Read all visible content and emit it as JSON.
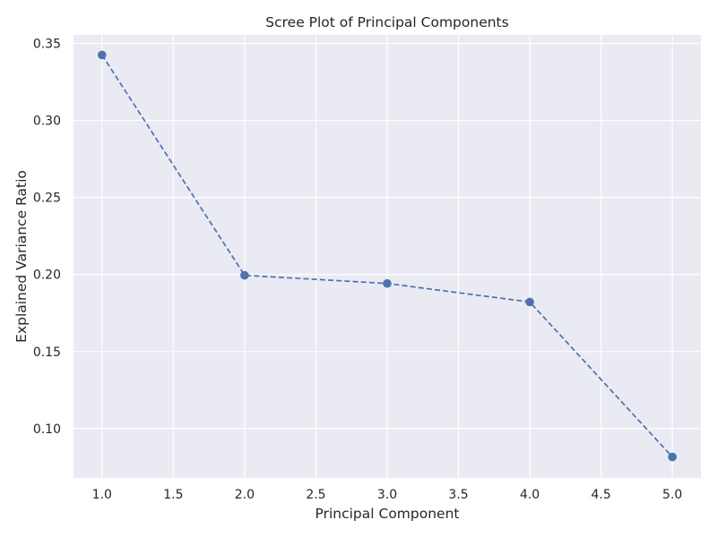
{
  "chart_data": {
    "type": "line",
    "title": "Scree Plot of Principal Components",
    "xlabel": "Principal Component",
    "ylabel": "Explained Variance Ratio",
    "x": [
      1,
      2,
      3,
      4,
      5
    ],
    "series": [
      {
        "values": [
          0.3425,
          0.1995,
          0.1942,
          0.1822,
          0.0816
        ],
        "color": "#4c72b0",
        "line_style": "dashed",
        "marker": "circle"
      }
    ],
    "xlim": [
      0.8,
      5.2
    ],
    "ylim": [
      0.068,
      0.3555
    ],
    "x_ticks": [
      "1.0",
      "1.5",
      "2.0",
      "2.5",
      "3.0",
      "3.5",
      "4.0",
      "4.5",
      "5.0"
    ],
    "y_ticks": [
      "0.10",
      "0.15",
      "0.20",
      "0.25",
      "0.30",
      "0.35"
    ],
    "grid": true,
    "legend": "none"
  },
  "colors": {
    "plot_background": "#eaeaf2",
    "grid": "#ffffff",
    "text": "#262626",
    "series": "#4c72b0"
  }
}
